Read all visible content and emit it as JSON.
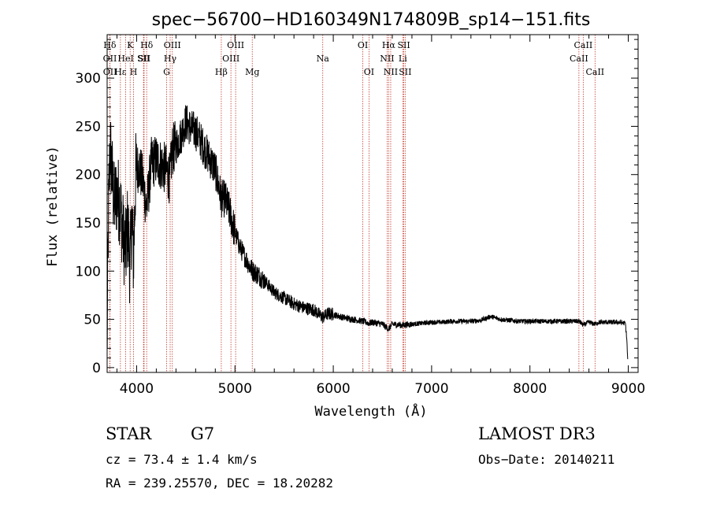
{
  "chart_data": {
    "type": "line",
    "title": "spec−56700−HD160349N174809B_sp14−151.fits",
    "xlabel": "Wavelength (Å)",
    "ylabel": "Flux (relative)",
    "xlim": [
      3700,
      9100
    ],
    "ylim": [
      -5,
      345
    ],
    "xticks": [
      4000,
      5000,
      6000,
      7000,
      8000,
      9000
    ],
    "yticks": [
      0,
      50,
      100,
      150,
      200,
      250,
      300
    ],
    "series": [
      {
        "name": "flux",
        "anchors": [
          [
            3700,
            10
          ],
          [
            3705,
            80
          ],
          [
            3715,
            170
          ],
          [
            3730,
            230
          ],
          [
            3750,
            200
          ],
          [
            3770,
            170
          ],
          [
            3800,
            180
          ],
          [
            3830,
            170
          ],
          [
            3850,
            150
          ],
          [
            3870,
            130
          ],
          [
            3890,
            120
          ],
          [
            3910,
            150
          ],
          [
            3933,
            100
          ],
          [
            3950,
            160
          ],
          [
            3968,
            110
          ],
          [
            3990,
            200
          ],
          [
            4020,
            210
          ],
          [
            4060,
            195
          ],
          [
            4102,
            165
          ],
          [
            4150,
            212
          ],
          [
            4200,
            215
          ],
          [
            4250,
            210
          ],
          [
            4300,
            205
          ],
          [
            4340,
            195
          ],
          [
            4360,
            225
          ],
          [
            4400,
            230
          ],
          [
            4450,
            240
          ],
          [
            4500,
            255
          ],
          [
            4550,
            248
          ],
          [
            4600,
            245
          ],
          [
            4650,
            235
          ],
          [
            4700,
            225
          ],
          [
            4750,
            215
          ],
          [
            4800,
            205
          ],
          [
            4861,
            175
          ],
          [
            4900,
            175
          ],
          [
            4950,
            160
          ],
          [
            5000,
            140
          ],
          [
            5050,
            125
          ],
          [
            5100,
            115
          ],
          [
            5150,
            105
          ],
          [
            5183,
            100
          ],
          [
            5250,
            95
          ],
          [
            5300,
            90
          ],
          [
            5400,
            78
          ],
          [
            5500,
            72
          ],
          [
            5600,
            66
          ],
          [
            5700,
            62
          ],
          [
            5800,
            60
          ],
          [
            5893,
            52
          ],
          [
            5950,
            56
          ],
          [
            6000,
            55
          ],
          [
            6100,
            52
          ],
          [
            6200,
            50
          ],
          [
            6300,
            48
          ],
          [
            6363,
            46
          ],
          [
            6400,
            47
          ],
          [
            6500,
            45
          ],
          [
            6563,
            40
          ],
          [
            6600,
            45
          ],
          [
            6700,
            44
          ],
          [
            6800,
            45
          ],
          [
            6900,
            46
          ],
          [
            7000,
            47
          ],
          [
            7100,
            47
          ],
          [
            7200,
            48
          ],
          [
            7300,
            48
          ],
          [
            7400,
            48
          ],
          [
            7500,
            49
          ],
          [
            7600,
            53
          ],
          [
            7700,
            50
          ],
          [
            7800,
            49
          ],
          [
            7900,
            48
          ],
          [
            8000,
            48
          ],
          [
            8100,
            48
          ],
          [
            8200,
            48
          ],
          [
            8300,
            48
          ],
          [
            8400,
            48
          ],
          [
            8500,
            48
          ],
          [
            8542,
            44
          ],
          [
            8600,
            47
          ],
          [
            8662,
            45
          ],
          [
            8700,
            47
          ],
          [
            8800,
            47
          ],
          [
            8900,
            47
          ],
          [
            8970,
            46
          ],
          [
            8985,
            30
          ],
          [
            8995,
            5
          ]
        ]
      }
    ],
    "lines": [
      {
        "label": "Hδ",
        "x": 3727,
        "row": 1
      },
      {
        "label": "OII",
        "x": 3728,
        "row": 2
      },
      {
        "label": "OII",
        "x": 3729,
        "row": 3
      },
      {
        "label": "K",
        "x": 3934,
        "row": 1
      },
      {
        "label": "HeI",
        "x": 3889,
        "row": 2
      },
      {
        "label": "Hε",
        "x": 3835,
        "row": 3
      },
      {
        "label": "H",
        "x": 3969,
        "row": 3
      },
      {
        "label": "SII",
        "x": 4070,
        "row": 2
      },
      {
        "label": "Hδ",
        "x": 4102,
        "row": 1
      },
      {
        "label": "SII",
        "x": 4076,
        "row": 2
      },
      {
        "label": "OIII",
        "x": 4363,
        "row": 1
      },
      {
        "label": "Hγ",
        "x": 4341,
        "row": 2
      },
      {
        "label": "G",
        "x": 4305,
        "row": 3
      },
      {
        "label": "Hβ",
        "x": 4861,
        "row": 3
      },
      {
        "label": "OIII",
        "x": 5007,
        "row": 1
      },
      {
        "label": "OIII",
        "x": 4959,
        "row": 2
      },
      {
        "label": "Mg",
        "x": 5176,
        "row": 3
      },
      {
        "label": "Na",
        "x": 5893,
        "row": 2
      },
      {
        "label": "OI",
        "x": 6300,
        "row": 1
      },
      {
        "label": "OI",
        "x": 6363,
        "row": 3
      },
      {
        "label": "Hα",
        "x": 6563,
        "row": 1
      },
      {
        "label": "NII",
        "x": 6548,
        "row": 2
      },
      {
        "label": "NII",
        "x": 6584,
        "row": 3
      },
      {
        "label": "SII",
        "x": 6717,
        "row": 1
      },
      {
        "label": "Li",
        "x": 6707,
        "row": 2
      },
      {
        "label": "SII",
        "x": 6731,
        "row": 3
      },
      {
        "label": "CaII",
        "x": 8542,
        "row": 1
      },
      {
        "label": "CaII",
        "x": 8498,
        "row": 2
      },
      {
        "label": "CaII",
        "x": 8662,
        "row": 3
      }
    ]
  },
  "info": {
    "object_type": "STAR",
    "subclass": "G7",
    "survey": "LAMOST DR3",
    "cz": "cz = 73.4 ± 1.4 km/s",
    "obs_date": "Obs−Date: 20140211",
    "coords": "RA = 239.25570, DEC =  18.20282"
  },
  "colors": {
    "line_marker": "#c0392b",
    "spectrum": "#000000"
  }
}
